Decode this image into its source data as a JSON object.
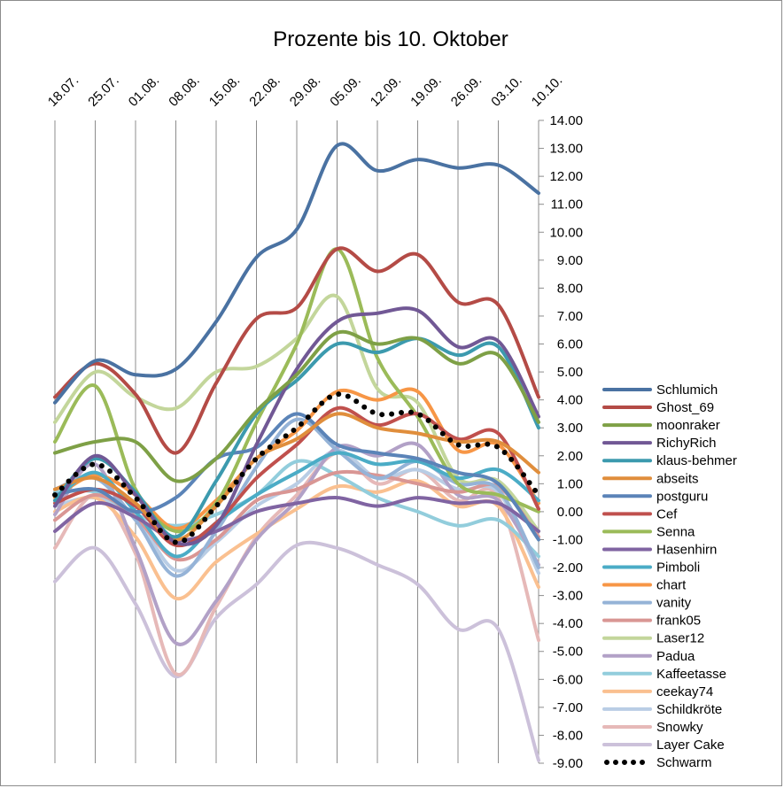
{
  "chart_data": {
    "type": "line",
    "title": "Prozente bis 10. Oktober",
    "xlabel": "",
    "ylabel": "",
    "categories": [
      "18.07.",
      "25.07.",
      "01.08.",
      "08.08.",
      "15.08.",
      "22.08.",
      "29.08.",
      "05.09.",
      "12.09.",
      "19.09.",
      "26.09.",
      "03.10.",
      "10.10."
    ],
    "ylim": [
      -9,
      14
    ],
    "y_ticks": [
      "14.00",
      "13.00",
      "12.00",
      "11.00",
      "10.00",
      "9.00",
      "8.00",
      "7.00",
      "6.00",
      "5.00",
      "4.00",
      "3.00",
      "2.00",
      "1.00",
      "0.00",
      "-1.00",
      "-2.00",
      "-3.00",
      "-4.00",
      "-5.00",
      "-6.00",
      "-7.00",
      "-8.00",
      "-9.00"
    ],
    "x_grid": true,
    "y_grid": false,
    "y_axis_side": "right",
    "legend_position": "right",
    "series": [
      {
        "name": "Schlumich",
        "color": "#4a72a2",
        "dotted": false,
        "values": [
          3.9,
          5.4,
          4.9,
          5.1,
          6.8,
          9.1,
          10.1,
          13.1,
          12.2,
          12.6,
          12.3,
          12.4,
          11.4
        ]
      },
      {
        "name": "Ghost_69",
        "color": "#b44b46",
        "dotted": false,
        "values": [
          4.1,
          5.3,
          4.2,
          2.1,
          4.6,
          6.9,
          7.3,
          9.4,
          8.6,
          9.2,
          7.5,
          7.4,
          4.1
        ]
      },
      {
        "name": "moonraker",
        "color": "#7ea046",
        "dotted": false,
        "values": [
          2.1,
          2.5,
          2.5,
          1.1,
          1.9,
          3.6,
          4.9,
          6.4,
          6.0,
          6.2,
          5.3,
          5.6,
          3.2
        ]
      },
      {
        "name": "RichyRich",
        "color": "#715895",
        "dotted": false,
        "values": [
          0.2,
          2.0,
          0.6,
          -1.1,
          -0.5,
          2.4,
          5.1,
          6.8,
          7.1,
          7.2,
          5.9,
          6.1,
          3.4
        ]
      },
      {
        "name": "klaus-behmer",
        "color": "#3c9aae",
        "dotted": false,
        "values": [
          0.4,
          1.9,
          0.7,
          -0.9,
          1.1,
          3.5,
          4.7,
          6.0,
          5.7,
          6.2,
          5.6,
          5.9,
          3.0
        ]
      },
      {
        "name": "abseits",
        "color": "#e08e3c",
        "dotted": false,
        "values": [
          0.8,
          1.2,
          0.3,
          -1.0,
          0.2,
          1.9,
          2.6,
          3.5,
          3.0,
          2.8,
          2.5,
          2.5,
          1.4
        ]
      },
      {
        "name": "postguru",
        "color": "#5b84b8",
        "dotted": false,
        "values": [
          0.6,
          0.8,
          0.0,
          0.5,
          1.9,
          2.3,
          3.5,
          2.4,
          2.1,
          1.9,
          1.4,
          1.0,
          -1.0
        ]
      },
      {
        "name": "Cef",
        "color": "#c0504d",
        "dotted": false,
        "values": [
          0.3,
          0.8,
          0.2,
          -1.2,
          -0.4,
          1.2,
          2.4,
          3.7,
          3.1,
          3.5,
          2.6,
          2.8,
          0.1
        ]
      },
      {
        "name": "Senna",
        "color": "#9bbb59",
        "dotted": false,
        "values": [
          2.5,
          4.5,
          0.8,
          -0.7,
          0.3,
          3.2,
          6.0,
          9.4,
          5.5,
          3.4,
          1.0,
          0.6,
          0.0
        ]
      },
      {
        "name": "Hasenhirn",
        "color": "#8064a2",
        "dotted": false,
        "values": [
          -0.7,
          0.3,
          -0.2,
          -1.0,
          -0.7,
          0.0,
          0.3,
          0.5,
          0.2,
          0.5,
          0.3,
          0.3,
          -0.7
        ]
      },
      {
        "name": "Pimboli",
        "color": "#4bacc6",
        "dotted": false,
        "values": [
          0.4,
          1.4,
          0.0,
          -1.6,
          -0.4,
          0.6,
          1.4,
          2.1,
          1.7,
          1.8,
          1.2,
          1.5,
          0.4
        ]
      },
      {
        "name": "chart",
        "color": "#f79646",
        "dotted": false,
        "values": [
          0.5,
          1.3,
          0.6,
          -0.6,
          0.4,
          1.9,
          2.9,
          4.3,
          4.0,
          4.3,
          2.2,
          2.4,
          0.3
        ]
      },
      {
        "name": "vanity",
        "color": "#95b3d7",
        "dotted": false,
        "values": [
          0.8,
          1.2,
          -0.3,
          -2.3,
          -0.7,
          1.6,
          3.3,
          2.2,
          1.2,
          1.8,
          1.0,
          0.8,
          -2.0
        ]
      },
      {
        "name": "frank05",
        "color": "#d99694",
        "dotted": false,
        "values": [
          -0.3,
          0.6,
          -0.2,
          -1.7,
          -1.0,
          0.4,
          0.8,
          1.4,
          1.3,
          1.0,
          0.7,
          0.9,
          -0.9
        ]
      },
      {
        "name": "Laser12",
        "color": "#c3d69b",
        "dotted": false,
        "values": [
          3.2,
          5.0,
          4.1,
          3.7,
          5.0,
          5.2,
          6.2,
          7.7,
          4.4,
          3.9,
          1.2,
          1.1,
          -0.7
        ]
      },
      {
        "name": "Padua",
        "color": "#b2a1c7",
        "dotted": false,
        "values": [
          -0.1,
          1.7,
          -1.3,
          -4.7,
          -3.2,
          -1.0,
          0.4,
          2.3,
          2.0,
          2.4,
          0.6,
          0.4,
          -1.9
        ]
      },
      {
        "name": "Kaffeetasse",
        "color": "#92cddc",
        "dotted": false,
        "values": [
          0.7,
          0.7,
          -0.1,
          -0.5,
          -0.1,
          0.6,
          1.8,
          1.3,
          0.5,
          0.0,
          -0.5,
          -0.3,
          -1.6
        ]
      },
      {
        "name": "ceekay74",
        "color": "#fac090",
        "dotted": false,
        "values": [
          0.0,
          0.5,
          -0.9,
          -3.1,
          -1.8,
          -0.8,
          0.1,
          0.9,
          0.7,
          1.1,
          0.2,
          0.2,
          -2.7
        ]
      },
      {
        "name": "Schildkröte",
        "color": "#b9cde5",
        "dotted": false,
        "values": [
          0.2,
          0.5,
          -0.2,
          -2.1,
          -1.1,
          0.2,
          1.0,
          2.2,
          1.2,
          1.5,
          0.8,
          0.7,
          -2.2
        ]
      },
      {
        "name": "Snowky",
        "color": "#e6b9b8",
        "dotted": false,
        "values": [
          -1.3,
          0.6,
          -1.5,
          -5.8,
          -3.4,
          -0.9,
          0.6,
          2.1,
          1.0,
          1.5,
          0.4,
          0.5,
          -4.6
        ]
      },
      {
        "name": "Layer Cake",
        "color": "#ccc1da",
        "dotted": false,
        "values": [
          -2.5,
          -1.3,
          -3.3,
          -5.9,
          -3.8,
          -2.6,
          -1.2,
          -1.3,
          -1.9,
          -2.6,
          -4.2,
          -4.2,
          -8.9
        ]
      },
      {
        "name": "Schwarm",
        "color": "#000000",
        "dotted": true,
        "values": [
          0.6,
          1.7,
          0.5,
          -1.1,
          0.2,
          1.9,
          3.0,
          4.2,
          3.5,
          3.5,
          2.4,
          2.3,
          0.6
        ]
      }
    ]
  }
}
